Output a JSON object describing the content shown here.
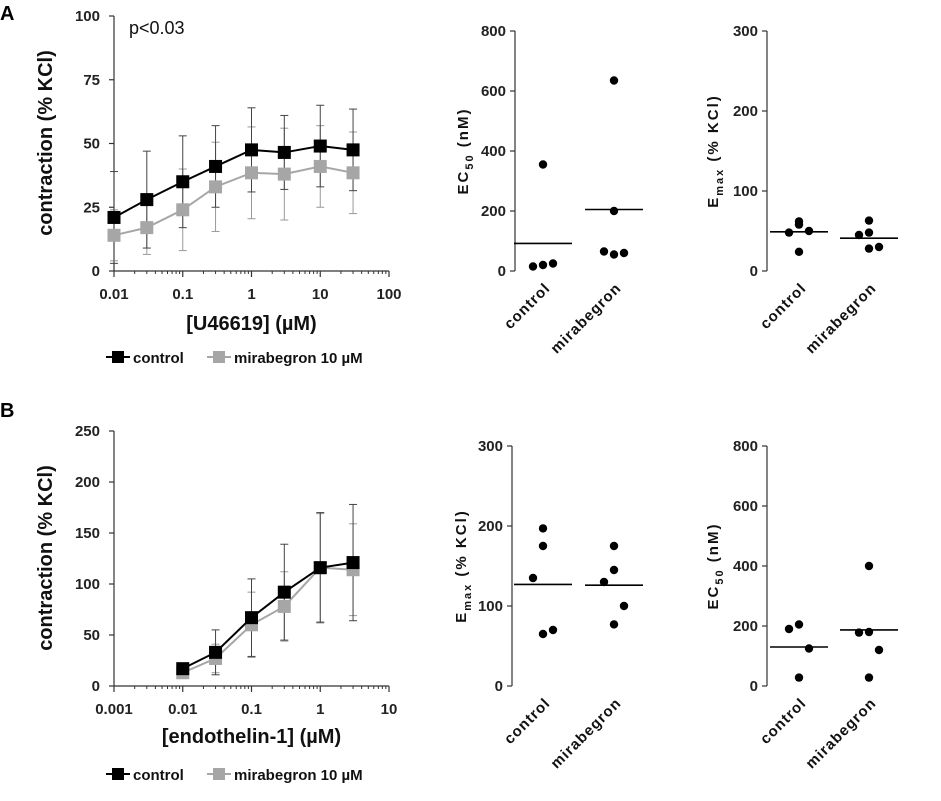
{
  "panels": [
    {
      "letter": "A"
    },
    {
      "letter": "B"
    }
  ],
  "chart_data": [
    {
      "id": "A-curve",
      "type": "line",
      "panel": "A",
      "xscale": "log",
      "xlim": [
        0.01,
        100
      ],
      "ylim": [
        0,
        100
      ],
      "xticks": [
        "0.01",
        "0.1",
        "1",
        "10",
        "100"
      ],
      "yticks": [
        "0",
        "25",
        "50",
        "75",
        "100"
      ],
      "xlabel": "[U46619] (µM)",
      "ylabel": "contraction (% KCl)",
      "annotation": "p<0.03",
      "x": [
        0.01,
        0.03,
        0.1,
        0.3,
        1,
        3,
        10,
        30
      ],
      "series": [
        {
          "name": "control",
          "color": "#000000",
          "values": [
            21,
            28,
            35,
            41,
            47.5,
            46.5,
            49,
            47.5
          ],
          "err": [
            18,
            19,
            18,
            16,
            16.5,
            14.5,
            16,
            16
          ]
        },
        {
          "name": "mirabegron 10 µM",
          "color": "#a6a6a6",
          "values": [
            14,
            17,
            24,
            33,
            38.5,
            38,
            41,
            38.5
          ],
          "err": [
            10,
            10.5,
            16,
            17.5,
            18,
            18,
            16,
            16
          ]
        }
      ],
      "legend": [
        "control",
        "mirabegron 10 µM"
      ]
    },
    {
      "id": "A-ec50",
      "type": "scatter",
      "panel": "A",
      "ylabel_main": "EC",
      "ylabel_sub": "50",
      "ylabel_rest": " (nM)",
      "ylim": [
        0,
        800
      ],
      "yticks": [
        "0",
        "200",
        "400",
        "600",
        "800"
      ],
      "categories": [
        "control",
        "mirabegron"
      ],
      "points": [
        [
          355,
          15,
          25,
          20
        ],
        [
          635,
          200,
          65,
          60,
          55
        ]
      ],
      "means": [
        92,
        205
      ]
    },
    {
      "id": "A-emax",
      "type": "scatter",
      "panel": "A",
      "ylabel_main": "E",
      "ylabel_sub": "max",
      "ylabel_rest": " (% KCl)",
      "ylim": [
        0,
        300
      ],
      "yticks": [
        "0",
        "100",
        "200",
        "300"
      ],
      "categories": [
        "control",
        "mirabegron"
      ],
      "points": [
        [
          62,
          58,
          48,
          50,
          24
        ],
        [
          63,
          48,
          45,
          30,
          28
        ]
      ],
      "means": [
        49,
        41
      ]
    },
    {
      "id": "B-curve",
      "type": "line",
      "panel": "B",
      "xscale": "log",
      "xlim": [
        0.001,
        10
      ],
      "ylim": [
        0,
        250
      ],
      "xticks": [
        "0.001",
        "0.01",
        "0.1",
        "1",
        "10"
      ],
      "yticks": [
        "0",
        "50",
        "100",
        "150",
        "200",
        "250"
      ],
      "xlabel": "[endothelin-1] (µM)",
      "ylabel": "contraction (% KCl)",
      "x": [
        0.01,
        0.03,
        0.1,
        0.3,
        1,
        3
      ],
      "series": [
        {
          "name": "control",
          "color": "#000000",
          "values": [
            17,
            33,
            67,
            92,
            116,
            121
          ],
          "err": [
            3,
            22,
            38,
            47,
            54,
            57
          ]
        },
        {
          "name": "mirabegron 10 µM",
          "color": "#a6a6a6",
          "values": [
            13,
            27,
            60,
            78,
            116,
            114
          ],
          "err": [
            3,
            14,
            32,
            34,
            53,
            45
          ]
        }
      ],
      "legend": [
        "control",
        "mirabegron 10 µM"
      ]
    },
    {
      "id": "B-emax",
      "type": "scatter",
      "panel": "B",
      "ylabel_main": "E",
      "ylabel_sub": "max",
      "ylabel_rest": " (% KCl)",
      "ylim": [
        0,
        300
      ],
      "yticks": [
        "0",
        "100",
        "200",
        "300"
      ],
      "categories": [
        "control",
        "mirabegron"
      ],
      "points": [
        [
          197,
          175,
          135,
          70,
          65
        ],
        [
          175,
          145,
          130,
          100,
          77
        ]
      ],
      "means": [
        127,
        126
      ]
    },
    {
      "id": "B-ec50",
      "type": "scatter",
      "panel": "B",
      "ylabel_main": "EC",
      "ylabel_sub": "50",
      "ylabel_rest": " (nM)",
      "ylim": [
        0,
        800
      ],
      "yticks": [
        "0",
        "200",
        "400",
        "600",
        "800"
      ],
      "categories": [
        "control",
        "mirabegron"
      ],
      "points": [
        [
          205,
          190,
          125,
          28
        ],
        [
          400,
          180,
          178,
          120,
          28
        ]
      ],
      "means": [
        130,
        187
      ]
    }
  ]
}
